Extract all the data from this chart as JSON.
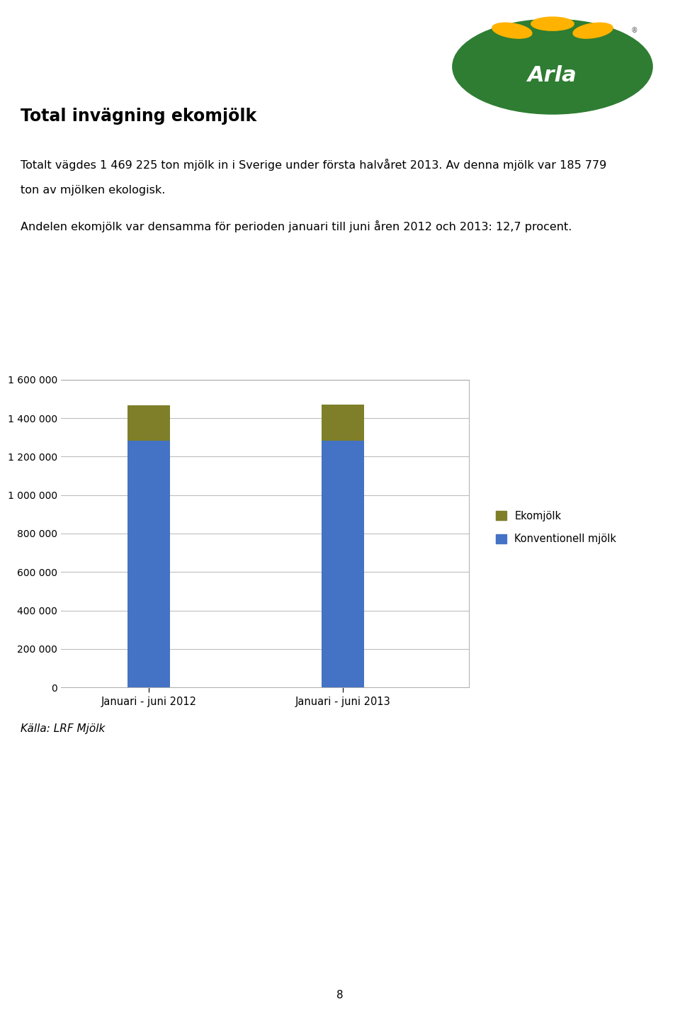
{
  "title": "Total invägning ekomjölk",
  "para1": "Totalt vägdes 1 469 225 ton mjölk in i Sverige under första halvåret 2013. Av denna mjölk var 185 779 ton av mjölken ekologisk.",
  "para2": "Andelen ekomjölk var densamma för perioden januari till juni åren 2012 och 2013: 12,7 procent.",
  "source": "Källa: LRF Mjölk",
  "categories": [
    "Januari - juni 2012",
    "Januari - juni 2013"
  ],
  "conventional_values": [
    1281446,
    1283446
  ],
  "organic_values": [
    185779,
    185779
  ],
  "conventional_color": "#4472C4",
  "organic_color": "#7F7F2A",
  "legend_conventional": "Konventionell mjölk",
  "legend_organic": "Ekomjölk",
  "ylim": [
    0,
    1600000
  ],
  "ytick_step": 200000,
  "background_color": "#FFFFFF",
  "chart_bg": "#FFFFFF",
  "grid_color": "#BEBEBE",
  "page_number": "8",
  "bar_width": 0.22
}
